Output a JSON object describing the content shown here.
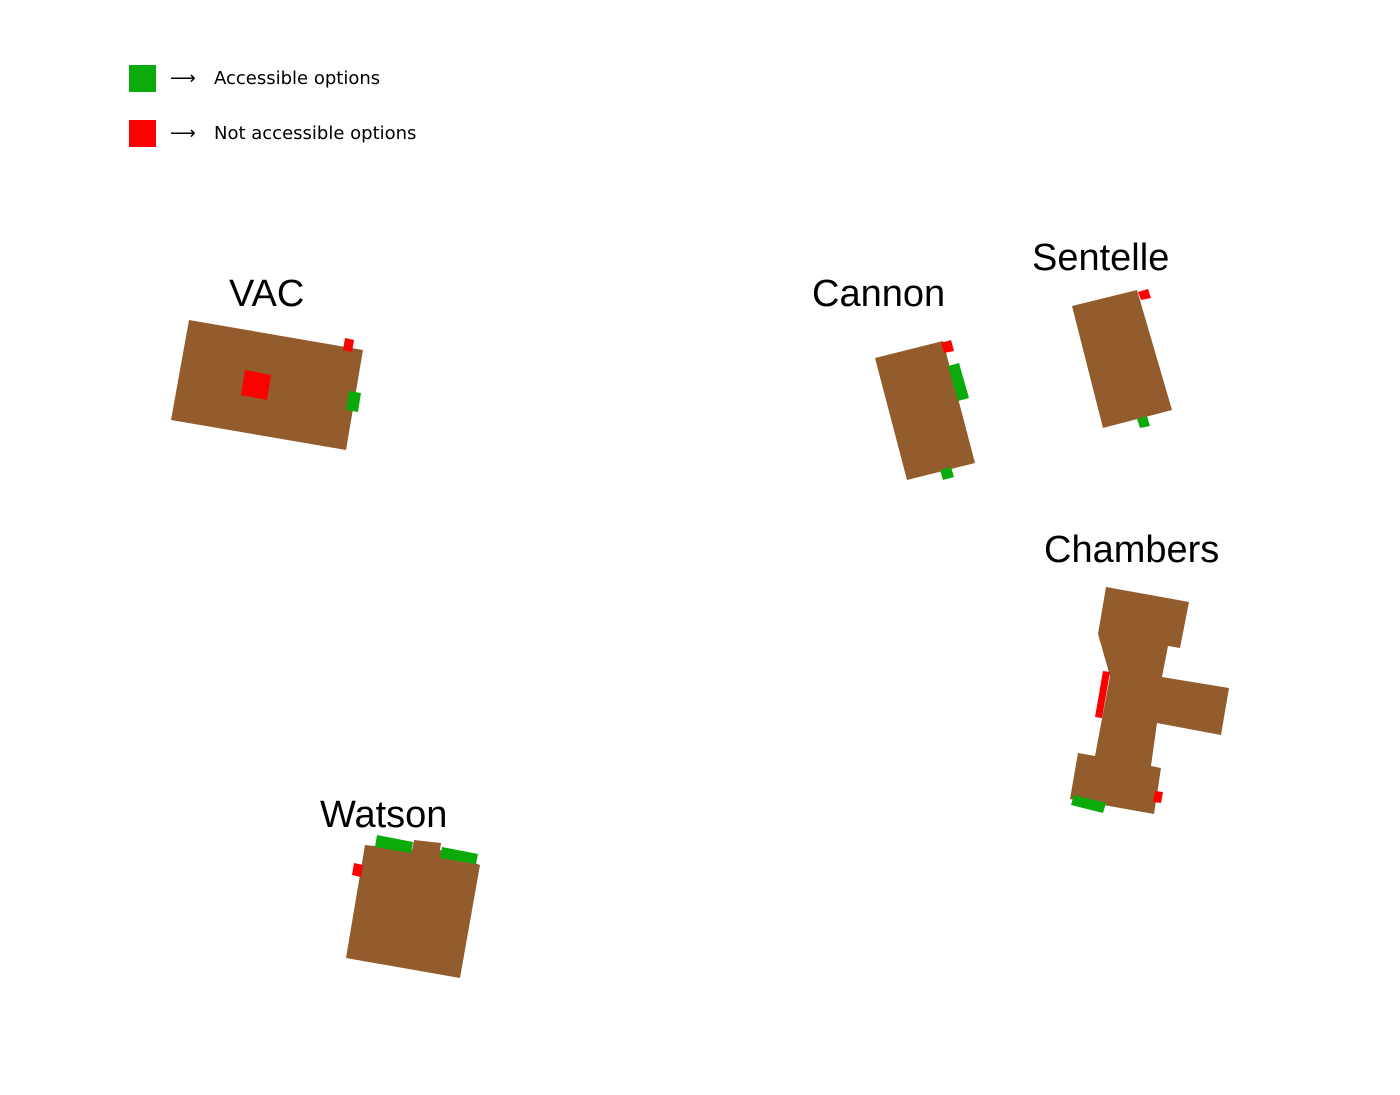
{
  "legend": {
    "arrow": "⟶",
    "items": [
      {
        "label": "Accessible options",
        "color": "#0aaa0a"
      },
      {
        "label": "Not accessible options",
        "color": "#ff0000"
      }
    ]
  },
  "colors": {
    "building": "#925c2d",
    "accessible": "#0aaa0a",
    "not_accessible": "#ff0000"
  },
  "buildings": {
    "vac": {
      "name": "VAC"
    },
    "cannon": {
      "name": "Cannon"
    },
    "sentelle": {
      "name": "Sentelle"
    },
    "chambers": {
      "name": "Chambers"
    },
    "watson": {
      "name": "Watson"
    }
  }
}
